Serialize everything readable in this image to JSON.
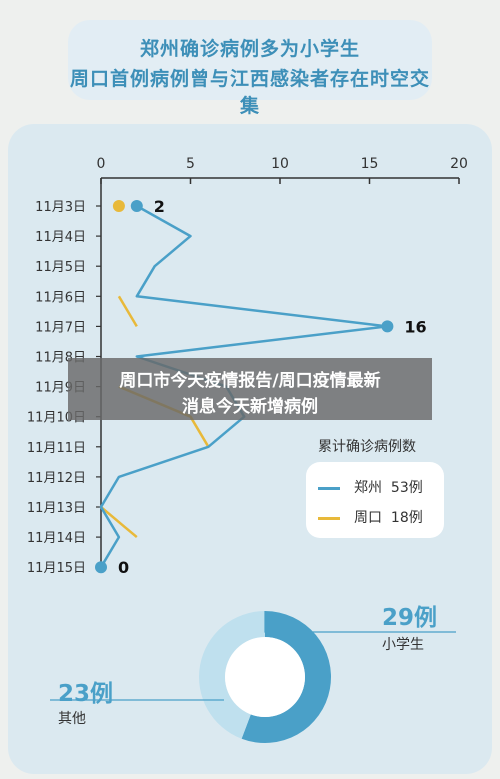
{
  "header": {
    "line1": "郑州确诊病例多为小学生",
    "line2": "周口首例病例曾与江西感染者存在时空交集"
  },
  "overlay": {
    "line1": "周口市今天疫情报告/周口疫情最新",
    "line2": "消息今天新增病例"
  },
  "colors": {
    "zhengzhou": "#4aa0c8",
    "zhoukou": "#e8b93a",
    "pie_main": "#4aa0c8",
    "pie_other": "#bfe0ee"
  },
  "chart_data": [
    {
      "type": "line",
      "categories": [
        "11月3日",
        "11月4日",
        "11月5日",
        "11月6日",
        "11月7日",
        "11月8日",
        "11月9日",
        "11月10日",
        "11月11日",
        "11月12日",
        "11月13日",
        "11月14日",
        "11月15日"
      ],
      "x_ticks": [
        0,
        5,
        10,
        15,
        20
      ],
      "xlim": [
        0,
        20
      ],
      "legend_title": "累计确诊病例数",
      "series": [
        {
          "name": "郑州",
          "total": "53例",
          "values": [
            2,
            5,
            3,
            2,
            16,
            2,
            7,
            8,
            6,
            1,
            0,
            1,
            0
          ]
        },
        {
          "name": "周口",
          "total": "18例",
          "values": [
            1,
            null,
            null,
            1,
            2,
            null,
            1,
            5,
            6,
            null,
            0,
            2,
            null
          ]
        }
      ],
      "data_labels": [
        {
          "series": "郑州",
          "category": "11月3日",
          "text": "2"
        },
        {
          "series": "郑州",
          "category": "11月7日",
          "text": "16"
        },
        {
          "series": "郑州",
          "category": "11月15日",
          "text": "0"
        }
      ],
      "grid": false
    },
    {
      "type": "pie",
      "slices": [
        {
          "label": "小学生",
          "display": "29例",
          "value": 29
        },
        {
          "label": "其他",
          "display": "23例",
          "value": 23
        }
      ]
    }
  ]
}
